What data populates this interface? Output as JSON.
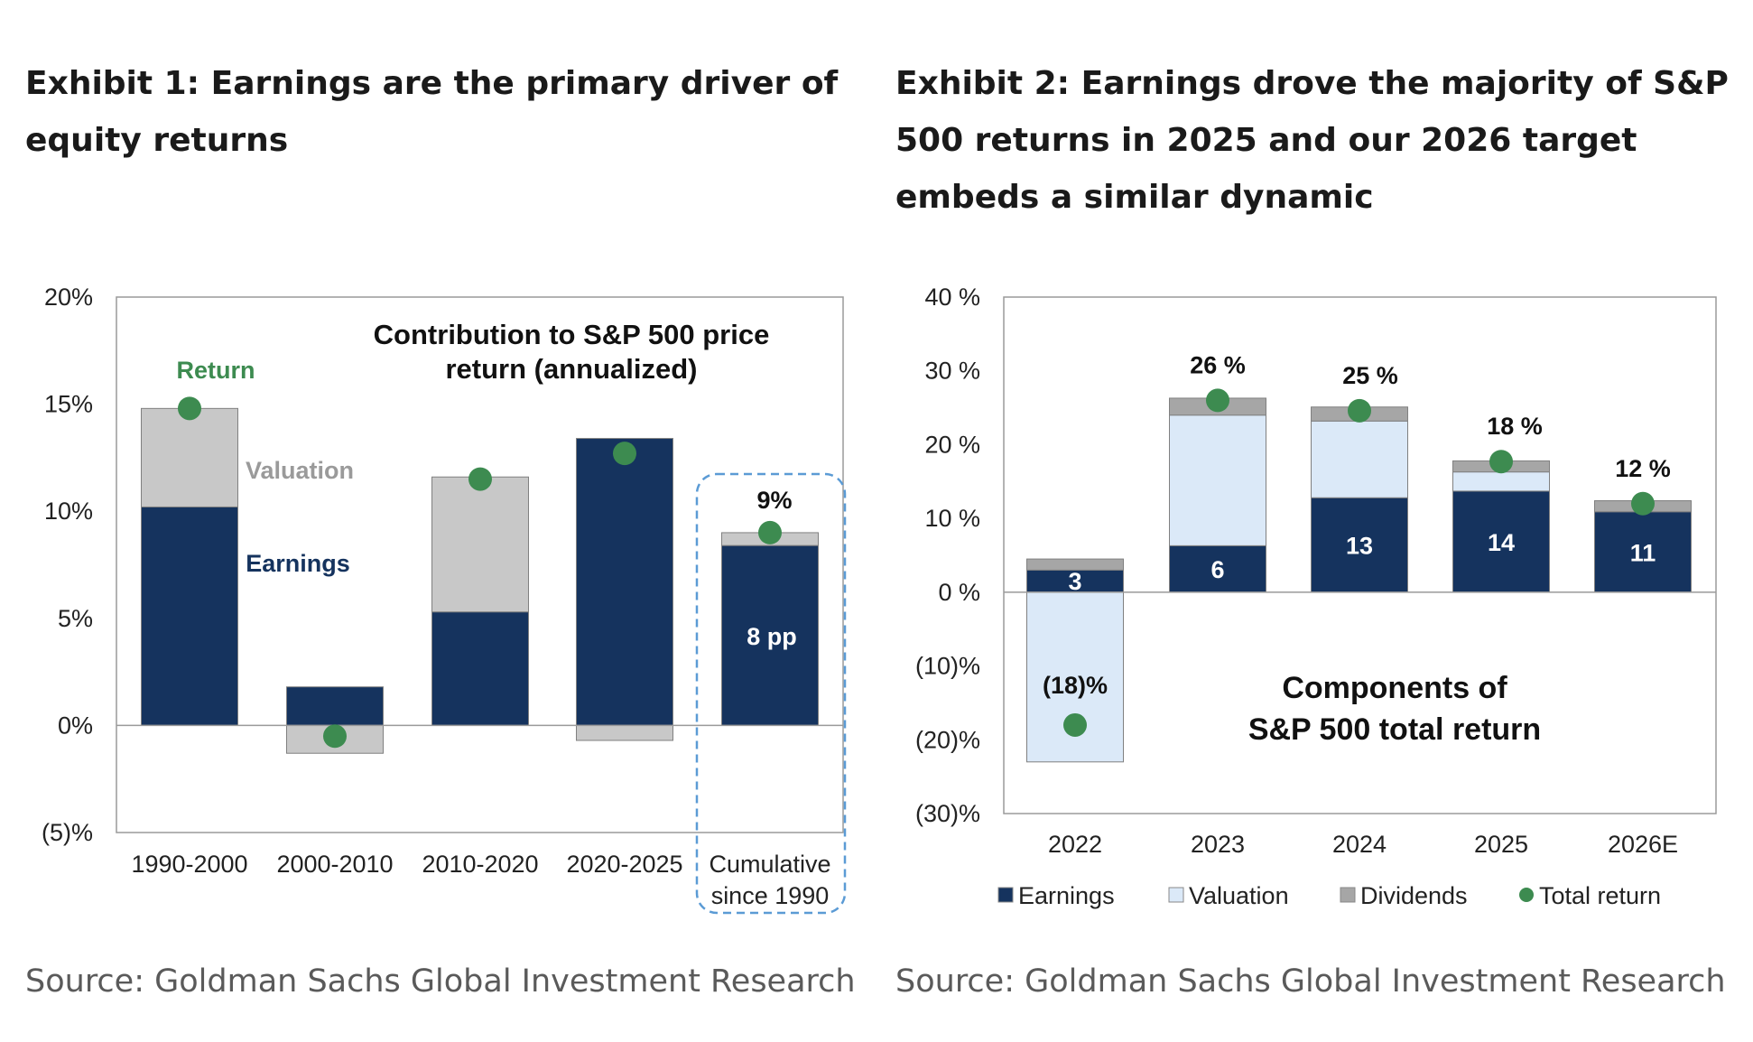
{
  "exhibit1": {
    "heading_lines": [
      "Exhibit 1: Earnings are the primary driver of",
      "equity returns"
    ],
    "source": "Source: Goldman Sachs Global Investment Research"
  },
  "exhibit2": {
    "heading_lines": [
      "Exhibit 2: Earnings drove the majority of S&P",
      "500 returns in 2025 and our 2026 target",
      "embeds a similar dynamic"
    ],
    "source": "Source: Goldman Sachs Global Investment Research"
  },
  "chart_data": [
    {
      "type": "bar",
      "stacked": true,
      "title_lines": [
        "Contribution to S&P 500 price",
        "return (annualized)"
      ],
      "categories": [
        [
          "1990-2000"
        ],
        [
          "2000-2010"
        ],
        [
          "2010-2020"
        ],
        [
          "2020-2025"
        ],
        [
          "Cumulative",
          "since 1990"
        ]
      ],
      "ylim": [
        -5,
        20
      ],
      "yticks": [
        20,
        15,
        10,
        5,
        0,
        -5
      ],
      "ytick_labels": [
        "20%",
        "15%",
        "10%",
        "5%",
        "0%",
        "(5)%"
      ],
      "series": [
        {
          "name": "Earnings",
          "color": "#15335e",
          "values": [
            10.2,
            1.8,
            5.3,
            13.4,
            8.4
          ]
        },
        {
          "name": "Valuation",
          "color": "#c8c8c8",
          "values": [
            4.6,
            -1.3,
            6.3,
            -0.7,
            0.6
          ]
        },
        {
          "name": "Return",
          "color": "#3d8b50",
          "type": "scatter",
          "values": [
            14.8,
            -0.5,
            11.5,
            12.7,
            9.0
          ]
        }
      ],
      "annotations": {
        "return_label": "Return",
        "valuation_label": "Valuation",
        "earnings_label": "Earnings",
        "cumulative_return": "9%",
        "cumulative_earnings": "8 pp"
      },
      "highlight": "Cumulative since 1990 (dashed box)",
      "grid": false
    },
    {
      "type": "bar",
      "stacked": true,
      "title_lines": [
        "Components of",
        "S&P 500 total return"
      ],
      "categories": [
        "2022",
        "2023",
        "2024",
        "2025",
        "2026E"
      ],
      "ylim": [
        -30,
        40
      ],
      "yticks": [
        40,
        30,
        20,
        10,
        0,
        -10,
        -20,
        -30
      ],
      "ytick_labels": [
        "40 %",
        "30 %",
        "20 %",
        "10 %",
        "0 %",
        "(10)%",
        "(20)%",
        "(30)%"
      ],
      "series": [
        {
          "name": "Earnings",
          "color": "#15335e",
          "values": [
            3,
            6.3,
            12.8,
            13.7,
            10.9
          ],
          "labels": [
            "3",
            "6",
            "13",
            "14",
            "11"
          ]
        },
        {
          "name": "Valuation",
          "color": "#dbe9f8",
          "values": [
            -23,
            17.7,
            10.4,
            2.6,
            0
          ]
        },
        {
          "name": "Dividends",
          "color": "#a6a6a6",
          "values": [
            1.5,
            2.3,
            1.9,
            1.5,
            1.5
          ]
        },
        {
          "name": "Total return",
          "color": "#3d8b50",
          "type": "scatter",
          "values": [
            -18,
            26,
            24.6,
            17.7,
            12
          ],
          "labels": [
            "(18)%",
            "26 %",
            "25 %",
            "18 %",
            "12 %"
          ]
        }
      ],
      "legend": "bottom",
      "grid": false
    }
  ]
}
